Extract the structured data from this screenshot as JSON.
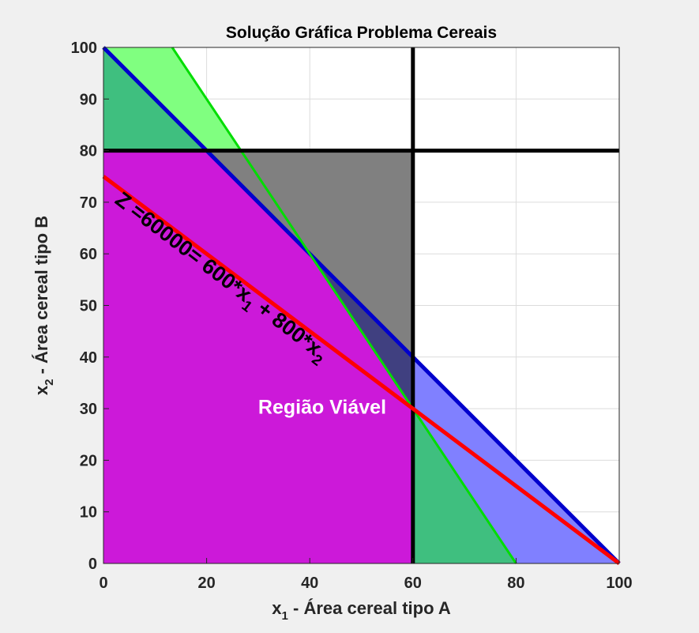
{
  "chart_data": {
    "type": "area",
    "title": "Solução Gráfica Problema Cereais",
    "xlabel": {
      "var": "x",
      "sub": "1",
      "text": " - Área cereal tipo A"
    },
    "ylabel": {
      "var": "x",
      "sub": "2",
      "text": " - Área cereal tipo B"
    },
    "xlim": [
      0,
      100
    ],
    "ylim": [
      0,
      100
    ],
    "xticks": [
      0,
      20,
      40,
      60,
      80,
      100
    ],
    "yticks": [
      0,
      10,
      20,
      30,
      40,
      50,
      60,
      70,
      80,
      90,
      100
    ],
    "grid": true,
    "colors": {
      "plot_bg": "#ffffff",
      "figure_bg": "#f0f0f0",
      "green_region": "#3fbf7f",
      "bright_green_region": "#80ff80",
      "blue_region": "#8080ff",
      "gray_region": "#808080",
      "dark_blue_region": "#404080",
      "feasible_region": "#cc19d9",
      "objective_line": "#ff0000",
      "blue_line": "#0000cc",
      "green_line": "#00dd00",
      "black_line": "#000000"
    },
    "regions": [
      {
        "name": "region-a",
        "color": "green_region",
        "points": [
          [
            0,
            100
          ],
          [
            20,
            80
          ],
          [
            60,
            30
          ],
          [
            60,
            0
          ],
          [
            80,
            0
          ],
          [
            40,
            60
          ],
          [
            26.67,
            80
          ],
          [
            0,
            80
          ]
        ]
      },
      {
        "name": "region-b",
        "color": "bright_green_region",
        "points": [
          [
            0,
            100
          ],
          [
            13.33,
            100
          ],
          [
            26.67,
            80
          ],
          [
            20,
            80
          ]
        ]
      },
      {
        "name": "region-c",
        "color": "gray_region",
        "points": [
          [
            20,
            80
          ],
          [
            60,
            80
          ],
          [
            60,
            40
          ],
          [
            40,
            60
          ]
        ]
      },
      {
        "name": "region-d",
        "color": "dark_blue_region",
        "points": [
          [
            40,
            60
          ],
          [
            60,
            40
          ],
          [
            60,
            30
          ]
        ]
      },
      {
        "name": "region-e",
        "color": "blue_region",
        "points": [
          [
            60,
            40
          ],
          [
            100,
            0
          ],
          [
            80,
            0
          ],
          [
            60,
            30
          ]
        ]
      },
      {
        "name": "feasible-region",
        "color": "feasible_region",
        "points": [
          [
            0,
            0
          ],
          [
            60,
            0
          ],
          [
            60,
            30
          ],
          [
            40,
            60
          ],
          [
            20,
            80
          ],
          [
            0,
            80
          ]
        ]
      }
    ],
    "lines": [
      {
        "name": "constraint-line-1",
        "color": "blue_line",
        "width": 5,
        "points": [
          [
            0,
            100
          ],
          [
            100,
            0
          ]
        ]
      },
      {
        "name": "constraint-line-2",
        "color": "green_line",
        "width": 3,
        "points": [
          [
            13.33,
            100
          ],
          [
            80,
            0
          ]
        ]
      },
      {
        "name": "constraint-line-x1",
        "color": "black_line",
        "width": 5,
        "points": [
          [
            60,
            0
          ],
          [
            60,
            100
          ]
        ]
      },
      {
        "name": "constraint-line-x2",
        "color": "black_line",
        "width": 5,
        "points": [
          [
            0,
            80
          ],
          [
            100,
            80
          ]
        ]
      },
      {
        "name": "objective-line",
        "color": "objective_line",
        "width": 5,
        "points": [
          [
            0,
            75
          ],
          [
            100,
            0
          ]
        ]
      }
    ],
    "annotations": {
      "objective": {
        "parts": [
          "Z =60000= 600*x",
          "1",
          " + 800*x",
          "2"
        ],
        "x": 2,
        "y": 70,
        "angle_deg": 37.5
      },
      "feasible_label": {
        "text": "Região Viável",
        "x": 30,
        "y": 29
      }
    }
  }
}
